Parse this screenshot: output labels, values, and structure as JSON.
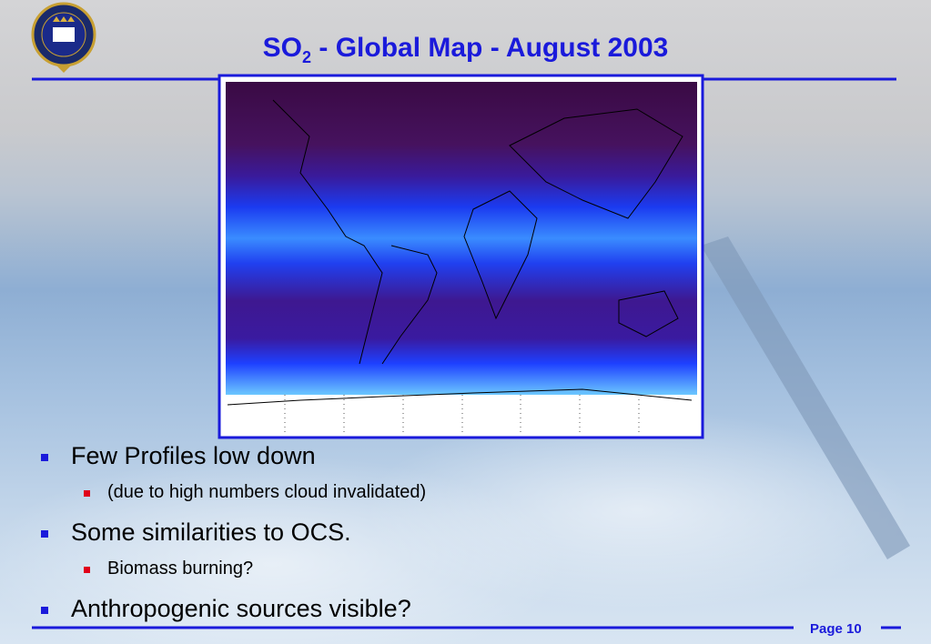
{
  "header": {
    "title": {
      "main": "SO",
      "subscript": "2",
      "rest": " - Global Map - August 2003"
    }
  },
  "bullets": [
    {
      "text": "Few Profiles low down",
      "sub": [
        "(due to high numbers cloud invalidated)"
      ]
    },
    {
      "text": "Some similarities to OCS.",
      "sub": [
        "Biomass burning?"
      ]
    },
    {
      "text": "Anthropogenic sources visible?"
    }
  ],
  "footer": {
    "page": "Page 10"
  }
}
